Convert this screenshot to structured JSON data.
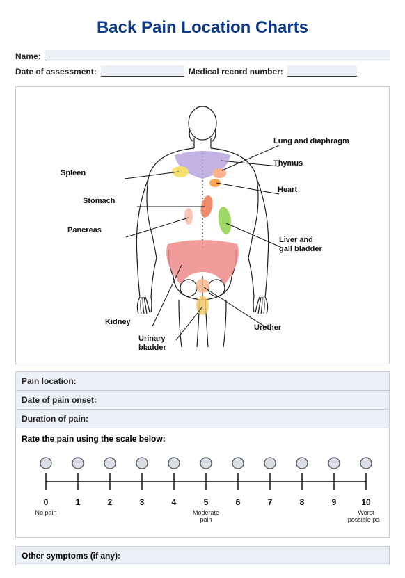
{
  "title": "Back Pain Location Charts",
  "fields": {
    "name_label": "Name:",
    "date_label": "Date of assessment:",
    "mrn_label": "Medical record number:"
  },
  "diagram": {
    "type": "infographic",
    "background_color": "#ffffff",
    "outline_color": "#1a1a1a",
    "labels": {
      "lung": "Lung and diaphragm",
      "thymus": "Thymus",
      "spleen": "Spleen",
      "heart": "Heart",
      "stomach": "Stomach",
      "pancreas": "Pancreas",
      "liver": "Liver and\ngall bladder",
      "kidney": "Kidney",
      "urinary": "Urinary\nbladder",
      "urether": "Urether"
    },
    "region_colors": {
      "lung": "#f9b28a",
      "thymus": "#b9a6e0",
      "spleen": "#f5df6f",
      "stomach": "#f08a6c",
      "heart": "#f7a654",
      "pancreas": "#f08a6c",
      "liver": "#a0d868",
      "kidney": "#f08a8a",
      "urinary": "#f2c96a",
      "urether": "#f6b58f"
    },
    "leader_line_color": "#111111",
    "label_fontsize": 11,
    "label_color": "#111111"
  },
  "sections": {
    "pain_location": "Pain location:",
    "date_onset": "Date of pain onset:",
    "duration": "Duration of pain:",
    "rate_title": "Rate the pain using the scale below:",
    "other": "Other symptoms (if any):"
  },
  "scale": {
    "type": "line",
    "min": 0,
    "max": 10,
    "ticks": [
      0,
      1,
      2,
      3,
      4,
      5,
      6,
      7,
      8,
      9,
      10
    ],
    "caption_left": "No pain",
    "caption_mid": "Moderate\npain",
    "caption_right": "Worst\npossible pain",
    "circle_fill": "#d9dce2",
    "circle_stroke": "#4a4f5a",
    "line_color": "#111111",
    "number_fontsize": 12,
    "caption_fontsize": 9
  }
}
